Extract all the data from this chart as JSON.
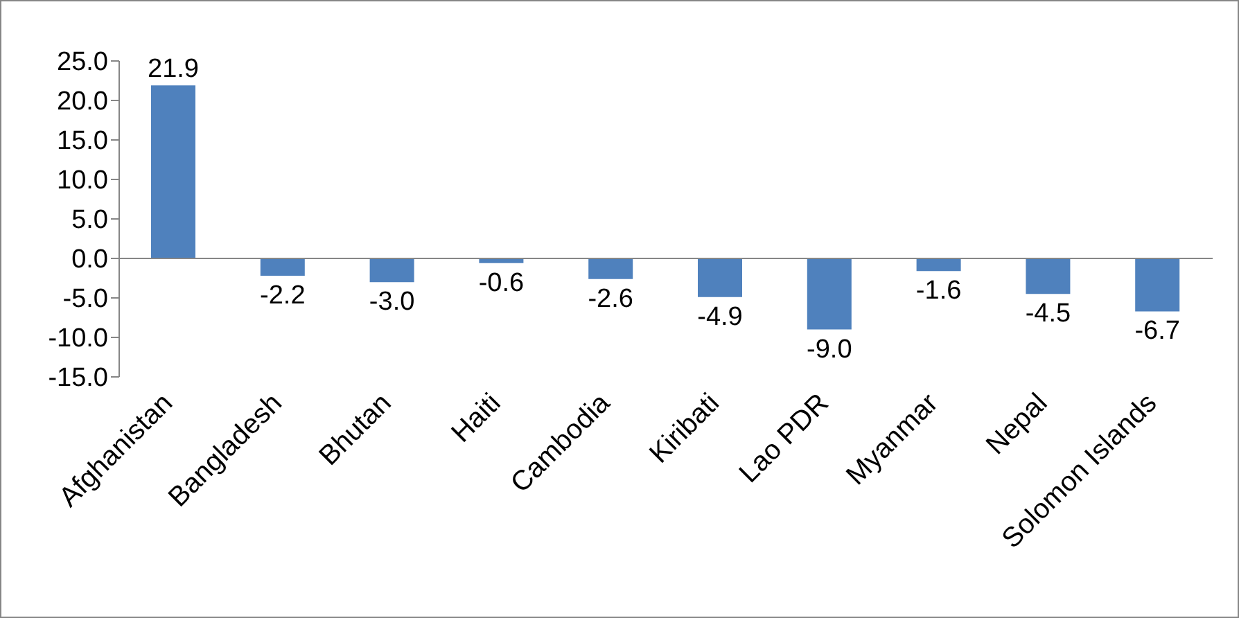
{
  "chart_data": {
    "type": "bar",
    "categories": [
      "Afghanistan",
      "Bangladesh",
      "Bhutan",
      "Haiti",
      "Cambodia",
      "Kiribati",
      "Lao PDR",
      "Myanmar",
      "Nepal",
      "Solomon Islands"
    ],
    "values": [
      21.9,
      -2.2,
      -3.0,
      -0.6,
      -2.6,
      -4.9,
      -9.0,
      -1.6,
      -4.5,
      -6.7
    ],
    "value_labels": [
      "21.9",
      "-2.2",
      "-3.0",
      "-0.6",
      "-2.6",
      "-4.9",
      "-9.0",
      "-1.6",
      "-4.5",
      "-6.7"
    ],
    "color": "#4f81bd",
    "ylim": [
      -15,
      25
    ],
    "yticks": [
      {
        "value": -15,
        "label": "-15.0"
      },
      {
        "value": -10,
        "label": "-10.0"
      },
      {
        "value": -5,
        "label": "-5.0"
      },
      {
        "value": 0,
        "label": "0.0"
      },
      {
        "value": 5,
        "label": "5.0"
      },
      {
        "value": 10,
        "label": "10.0"
      },
      {
        "value": 15,
        "label": "15.0"
      },
      {
        "value": 20,
        "label": "20.0"
      },
      {
        "value": 25,
        "label": "25.0"
      }
    ],
    "legend": false
  }
}
